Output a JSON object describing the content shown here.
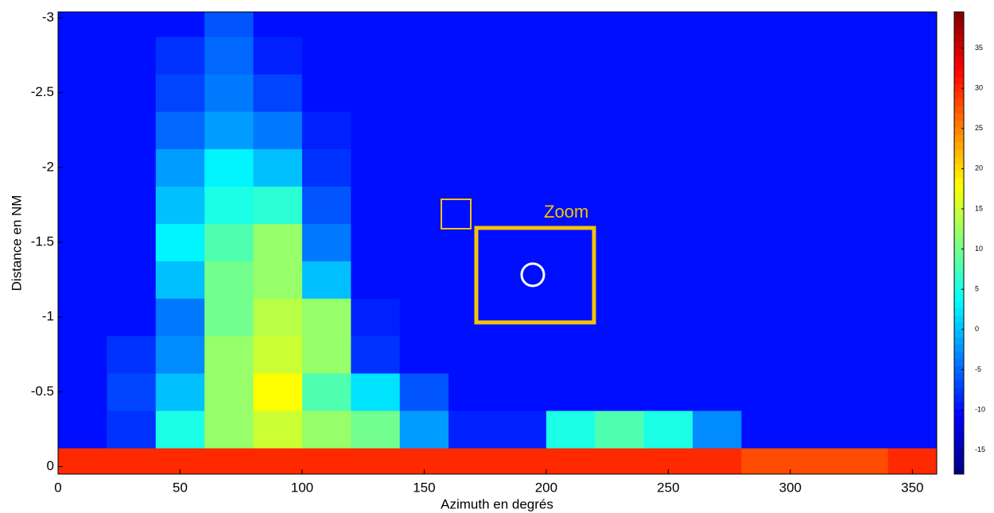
{
  "chart_data": {
    "type": "heatmap",
    "x_label": "Azimuth en degrés",
    "y_label": "Distance en NM",
    "annotation": "Zoom",
    "x": [
      10,
      30,
      50,
      70,
      90,
      110,
      130,
      150,
      170,
      190,
      210,
      230,
      250,
      270,
      290,
      310,
      330,
      350
    ],
    "y": [
      0,
      -0.25,
      -0.5,
      -0.75,
      -1,
      -1.25,
      -1.5,
      -1.75,
      -2,
      -2.25,
      -2.5,
      -2.75,
      -3
    ],
    "z": [
      [
        30,
        30,
        30,
        30,
        30,
        30,
        30,
        30,
        30,
        30,
        30,
        30,
        30,
        30,
        28,
        28,
        28,
        30
      ],
      [
        -10,
        -8,
        5,
        12,
        15,
        12,
        10,
        -2,
        -9,
        -9,
        5,
        8,
        5,
        -3,
        -10,
        -10,
        -10,
        -10
      ],
      [
        -10,
        -7,
        0,
        12,
        18,
        8,
        2,
        -6,
        -10,
        -10,
        -10,
        -10,
        -10,
        -10,
        -10,
        -10,
        -10,
        -10
      ],
      [
        -10,
        -8,
        -3,
        12,
        15,
        12,
        -8,
        -10,
        -10,
        -10,
        -10,
        -10,
        -10,
        -10,
        -10,
        -10,
        -10,
        -10
      ],
      [
        -10,
        -10,
        -4,
        10,
        14,
        12,
        -9,
        -10,
        -10,
        -10,
        -10,
        -10,
        -10,
        -10,
        -10,
        -10,
        -10,
        -10
      ],
      [
        -10,
        -10,
        0,
        10,
        12,
        0,
        -10,
        -10,
        -10,
        -10,
        -10,
        -10,
        -10,
        -10,
        -10,
        -10,
        -10,
        -10
      ],
      [
        -10,
        -10,
        3,
        8,
        12,
        -4,
        -10,
        -10,
        -10,
        -10,
        -10,
        -10,
        -10,
        -10,
        -10,
        -10,
        -10,
        -10
      ],
      [
        -10,
        -10,
        0,
        5,
        6,
        -6,
        -10,
        -10,
        -10,
        -10,
        -10,
        -10,
        -10,
        -10,
        -10,
        -10,
        -10,
        -10
      ],
      [
        -10,
        -10,
        -2,
        3,
        0,
        -8,
        -10,
        -10,
        -10,
        -10,
        -10,
        -10,
        -10,
        -10,
        -10,
        -10,
        -10,
        -10
      ],
      [
        -10,
        -10,
        -5,
        -2,
        -4,
        -9,
        -10,
        -10,
        -10,
        -10,
        -10,
        -10,
        -10,
        -10,
        -10,
        -10,
        -10,
        -10
      ],
      [
        -10,
        -10,
        -7,
        -4,
        -7,
        -10,
        -10,
        -10,
        -10,
        -10,
        -10,
        -10,
        -10,
        -10,
        -10,
        -10,
        -10,
        -10
      ],
      [
        -10,
        -10,
        -8,
        -5,
        -9,
        -10,
        -10,
        -10,
        -10,
        -10,
        -10,
        -10,
        -10,
        -10,
        -10,
        -10,
        -10,
        -10
      ],
      [
        -10,
        -10,
        -10,
        -6,
        -10,
        -10,
        -10,
        -10,
        -10,
        -10,
        -10,
        -10,
        -10,
        -10,
        -10,
        -10,
        -10,
        -10
      ]
    ],
    "xlim": [
      0,
      360
    ],
    "xticks": [
      0,
      50,
      100,
      150,
      200,
      250,
      300,
      350
    ],
    "ylim": [
      0.05,
      -3.04
    ],
    "yticks": [
      0,
      -0.5,
      -1,
      -1.5,
      -2,
      -2.5,
      -3
    ],
    "clim": [
      -18,
      39.5
    ],
    "cticks": [
      -15,
      -10,
      -5,
      0,
      5,
      10,
      15,
      20,
      25,
      30,
      35
    ],
    "colormap": "jet",
    "annotation_color": "#f5c400"
  }
}
